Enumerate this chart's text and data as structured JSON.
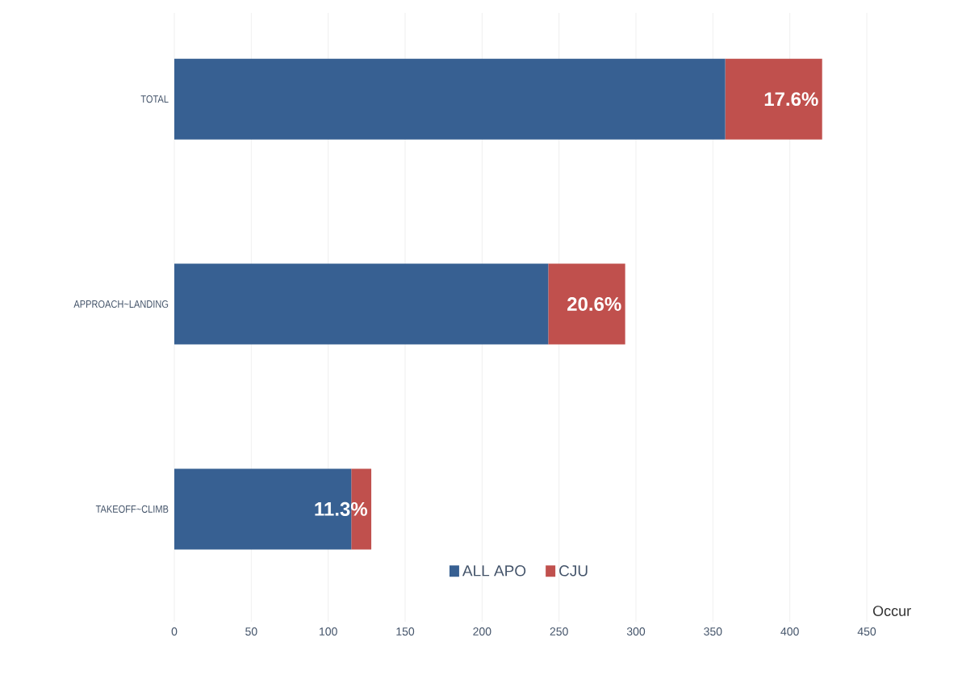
{
  "chart_data": {
    "type": "bar",
    "orientation": "horizontal",
    "stacked": true,
    "xlabel": "Occur",
    "categories": [
      "TOTAL",
      "APPROACH~LANDING",
      "TAKEOFF~CLIMB"
    ],
    "series": [
      {
        "name": "ALL APO",
        "color": "#376092",
        "values": [
          358,
          243,
          115
        ]
      },
      {
        "name": "CJU",
        "color": "#c0504d",
        "values": [
          63,
          50,
          13
        ]
      }
    ],
    "annotations": [
      {
        "text": "17.6%",
        "x": 421,
        "y": "TOTAL"
      },
      {
        "text": "20.6%",
        "x": 293,
        "y": "APPROACH~LANDING"
      },
      {
        "text": "11.3%",
        "x": 128,
        "y": "TAKEOFF~CLIMB"
      }
    ],
    "xlim": [
      0,
      450
    ],
    "xticks": [
      0,
      50,
      100,
      150,
      200,
      250,
      300,
      350,
      400,
      450
    ],
    "grid": "x",
    "legend": "bottom"
  }
}
